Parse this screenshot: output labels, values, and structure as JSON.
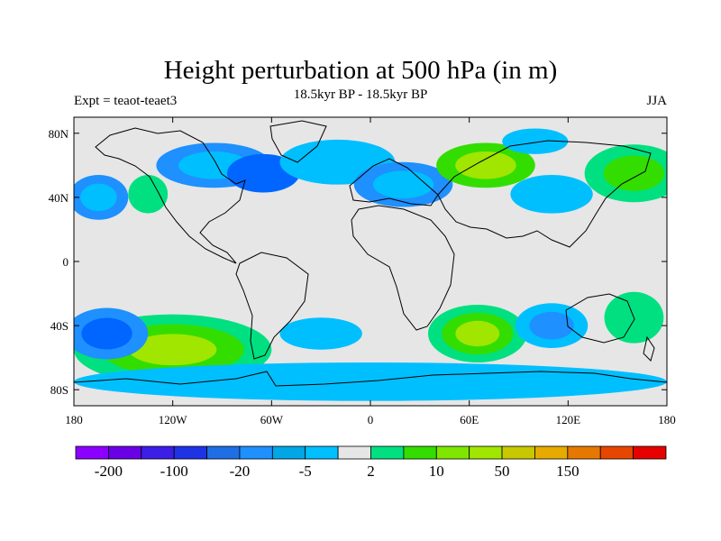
{
  "title": "Height perturbation at 500 hPa (in m)",
  "subtitle": "18.5kyr BP - 18.5kyr BP",
  "left_label": "Expt = teaot-teaet3",
  "right_label": "JJA",
  "map": {
    "projection": "cylindrical-equidistant",
    "lon_range": [
      -180,
      180
    ],
    "lat_range": [
      -90,
      90
    ],
    "ocean_land_background": "#e6e6e6",
    "x_ticks": [
      {
        "lon": -180,
        "label": "180"
      },
      {
        "lon": -120,
        "label": "120W"
      },
      {
        "lon": -60,
        "label": "60W"
      },
      {
        "lon": 0,
        "label": "0"
      },
      {
        "lon": 60,
        "label": "60E"
      },
      {
        "lon": 120,
        "label": "120E"
      },
      {
        "lon": 180,
        "label": "180"
      }
    ],
    "y_ticks": [
      {
        "lat": 80,
        "label": "80N"
      },
      {
        "lat": 40,
        "label": "40N"
      },
      {
        "lat": 0,
        "label": "0"
      },
      {
        "lat": -40,
        "label": "40S"
      },
      {
        "lat": -80,
        "label": "80S"
      }
    ],
    "anomalies": [
      {
        "name": "N Pacific negative",
        "lon": -165,
        "lat": 40,
        "rx": 18,
        "ry": 14,
        "levels": [
          "#1e90ff",
          "#00bfff"
        ]
      },
      {
        "name": "N Pacific positive",
        "lon": -135,
        "lat": 42,
        "rx": 12,
        "ry": 12,
        "levels": [
          "#00e080"
        ]
      },
      {
        "name": "N America negative",
        "lon": -95,
        "lat": 60,
        "rx": 35,
        "ry": 14,
        "levels": [
          "#1e90ff",
          "#00bfff"
        ]
      },
      {
        "name": "Canada deep negative",
        "lon": -65,
        "lat": 55,
        "rx": 22,
        "ry": 12,
        "levels": [
          "#0066ff"
        ]
      },
      {
        "name": "N Atlantic negative",
        "lon": -20,
        "lat": 62,
        "rx": 35,
        "ry": 14,
        "levels": [
          "#00bfff"
        ]
      },
      {
        "name": "Europe negative",
        "lon": 20,
        "lat": 48,
        "rx": 30,
        "ry": 14,
        "levels": [
          "#1e90ff",
          "#00bfff"
        ]
      },
      {
        "name": "Siberia positive",
        "lon": 70,
        "lat": 60,
        "rx": 30,
        "ry": 14,
        "levels": [
          "#33dd00",
          "#a0e600"
        ]
      },
      {
        "name": "Arctic negative",
        "lon": 100,
        "lat": 75,
        "rx": 20,
        "ry": 8,
        "levels": [
          "#00bfff"
        ]
      },
      {
        "name": "E Asia negative",
        "lon": 110,
        "lat": 42,
        "rx": 25,
        "ry": 12,
        "levels": [
          "#00bfff"
        ]
      },
      {
        "name": "NW Pacific positive",
        "lon": 160,
        "lat": 55,
        "rx": 30,
        "ry": 18,
        "levels": [
          "#00e080",
          "#33dd00"
        ]
      },
      {
        "name": "SE Pacific positive",
        "lon": -120,
        "lat": -55,
        "rx": 60,
        "ry": 22,
        "levels": [
          "#00e080",
          "#33dd00",
          "#a0e600"
        ]
      },
      {
        "name": "S Pacific negative",
        "lon": -160,
        "lat": -45,
        "rx": 25,
        "ry": 16,
        "levels": [
          "#1e90ff",
          "#0066ff"
        ]
      },
      {
        "name": "S Atlantic negative",
        "lon": -30,
        "lat": -45,
        "rx": 25,
        "ry": 10,
        "levels": [
          "#00bfff"
        ]
      },
      {
        "name": "Indian Ocean positive",
        "lon": 65,
        "lat": -45,
        "rx": 30,
        "ry": 18,
        "levels": [
          "#00e080",
          "#33dd00",
          "#a0e600"
        ]
      },
      {
        "name": "SE Indian negative",
        "lon": 110,
        "lat": -40,
        "rx": 22,
        "ry": 14,
        "levels": [
          "#00bfff",
          "#1e90ff"
        ]
      },
      {
        "name": "Tasman positive",
        "lon": 160,
        "lat": -35,
        "rx": 18,
        "ry": 16,
        "levels": [
          "#00e080"
        ]
      },
      {
        "name": "Antarctic negative",
        "lon": 0,
        "lat": -75,
        "rx": 180,
        "ry": 12,
        "levels": [
          "#00bfff"
        ]
      }
    ]
  },
  "colorbar": {
    "colors": [
      "#8b00ff",
      "#6a00e6",
      "#3c1ee6",
      "#1e32e6",
      "#1e6ee6",
      "#1e90ff",
      "#00a6e6",
      "#00bfff",
      "#e6e6e6",
      "#00e080",
      "#33dd00",
      "#7fe600",
      "#a0e600",
      "#c8c800",
      "#e6aa00",
      "#e67800",
      "#e64600",
      "#e60000"
    ],
    "labels": [
      {
        "boundary": 1,
        "text": "-200"
      },
      {
        "boundary": 3,
        "text": "-100"
      },
      {
        "boundary": 5,
        "text": "-20"
      },
      {
        "boundary": 7,
        "text": "-5"
      },
      {
        "boundary": 9,
        "text": "2"
      },
      {
        "boundary": 11,
        "text": "10"
      },
      {
        "boundary": 13,
        "text": "50"
      },
      {
        "boundary": 15,
        "text": "150"
      }
    ]
  }
}
